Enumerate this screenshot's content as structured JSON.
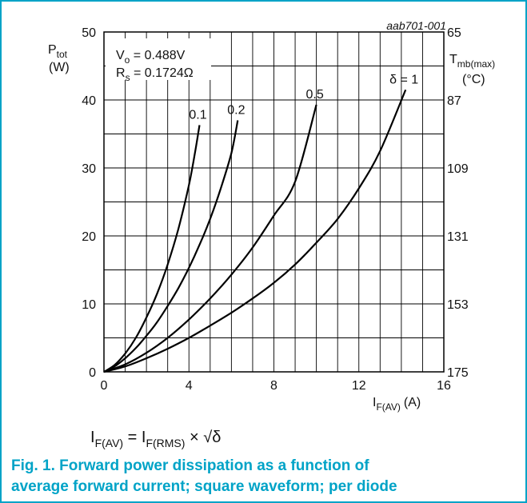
{
  "figure_id": "aab701-001",
  "y_label": {
    "main": "P",
    "sub": "tot",
    "unit": "(W)"
  },
  "y2_label": {
    "main": "T",
    "sub": "mb(max)",
    "unit": "(°C)"
  },
  "x_label": {
    "main": "I",
    "sub": "F(AV)",
    "unit": "(A)"
  },
  "params": {
    "vo": {
      "main": "V",
      "sub": "o",
      "rest": " = 0.488V"
    },
    "rs": {
      "main": "R",
      "sub": "s",
      "rest": " = 0.1724Ω"
    }
  },
  "formula": {
    "a": "I",
    "a_sub": "F(AV)",
    "b": " = I",
    "b_sub": "F(RMS)",
    "c": " × √δ"
  },
  "caption": {
    "line1": "Fig. 1. Forward power dissipation as a function of",
    "line2": "average forward current; square waveform; per diode"
  },
  "colors": {
    "caption": "#00a3c7",
    "curve": "#000000",
    "grid": "#000000",
    "frame": "#00a3c7"
  },
  "chart_data": {
    "type": "line",
    "xlim": [
      0,
      16
    ],
    "ylim": [
      0,
      50
    ],
    "y2lim": [
      175,
      65
    ],
    "grid": true,
    "x_ticks": [
      0,
      4,
      8,
      12,
      16
    ],
    "y_ticks": [
      0,
      10,
      20,
      30,
      40,
      50
    ],
    "y2_ticks": [
      175,
      153,
      131,
      109,
      87,
      65
    ],
    "series": [
      {
        "name": "0.1",
        "x": [
          0,
          0.5,
          1,
          1.5,
          2,
          2.5,
          3,
          3.5,
          4,
          4.3,
          4.5
        ],
        "y": [
          0,
          1.0,
          2.7,
          5.0,
          8.0,
          11.5,
          15.8,
          21.0,
          27.5,
          32.5,
          36.3
        ]
      },
      {
        "name": "0.2",
        "x": [
          0,
          0.5,
          1,
          1.5,
          2,
          2.5,
          3,
          3.5,
          4,
          4.5,
          5,
          5.5,
          6,
          6.3
        ],
        "y": [
          0,
          0.8,
          2.0,
          3.5,
          5.3,
          7.3,
          9.7,
          12.3,
          15.3,
          18.7,
          22.5,
          27.0,
          32.2,
          37.0
        ]
      },
      {
        "name": "0.5",
        "x": [
          0,
          1,
          2,
          3,
          4,
          5,
          6,
          7,
          8,
          9,
          10
        ],
        "y": [
          0,
          1.1,
          2.8,
          5.0,
          7.7,
          10.8,
          14.3,
          18.3,
          23.0,
          28.0,
          39.3
        ]
      },
      {
        "name": "δ = 1",
        "x": [
          0,
          1,
          2,
          3,
          4,
          5,
          6,
          7,
          8,
          9,
          10,
          11,
          12,
          13,
          14.2
        ],
        "y": [
          0,
          0.8,
          2.0,
          3.4,
          5.0,
          6.8,
          8.7,
          10.8,
          13.1,
          15.8,
          19.0,
          22.5,
          27.0,
          32.5,
          41.5
        ]
      }
    ]
  }
}
